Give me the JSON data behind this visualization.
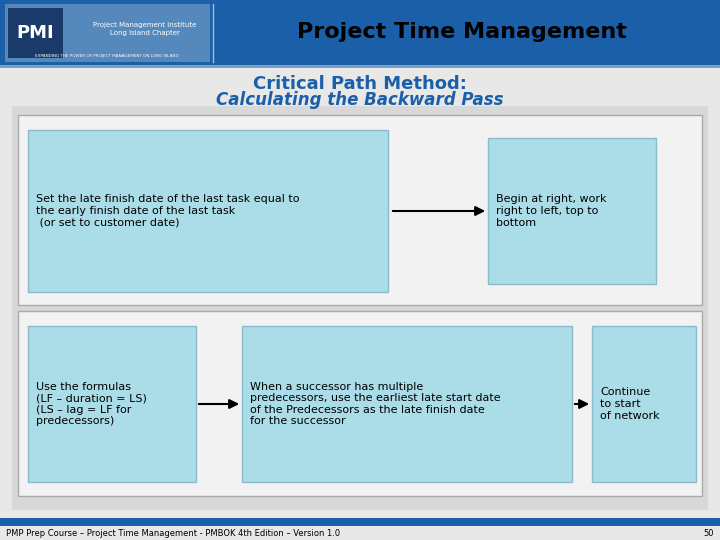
{
  "title_line1": "Critical Path Method:",
  "title_line2": "Calculating the Backward Pass",
  "header_title": "Project Time Management",
  "header_bg": "#1a5fa8",
  "title_color": "#1a5fa8",
  "bg_color": "#e8e8e8",
  "content_bg": "#f0f0f0",
  "box_bg": "#aadde8",
  "box_border": "#88bbcc",
  "box1_text": "Set the late finish date of the last task equal to\nthe early finish date of the last task\n (or set to customer date)",
  "box2_text": "Begin at right, work\nright to left, top to\nbottom",
  "box3_text": "Use the formulas\n(LF – duration = LS)\n(LS – lag = LF for\npredecessors)",
  "box4_text": "When a successor has multiple\npredecessors, use the earliest late start date\nof the Predecessors as the late finish date\nfor the successor",
  "box5_text": "Continue\nto start\nof network",
  "footer_text": "PMP Prep Course – Project Time Management - PMBOK 4th Edition – Version 1.0",
  "footer_page": "50",
  "footer_bar_color": "#1a5fa8",
  "pmi_logo_bg": "#5588bb",
  "pmi_text_color": "#ffffff"
}
